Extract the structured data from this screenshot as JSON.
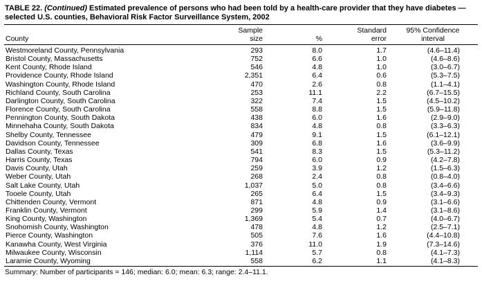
{
  "title": {
    "label": "TABLE 22.",
    "continued": "(Continued)",
    "text": "Estimated prevalence of persons who had been told by a health-care provider that they have diabetes — selected U.S. counties, Behavioral Risk Factor Surveillance System, 2002"
  },
  "table": {
    "header": {
      "county": "County",
      "sample_line1": "Sample",
      "sample_line2": "size",
      "percent": "%",
      "se_line1": "Standard",
      "se_line2": "error",
      "ci_line1": "95% Confidence",
      "ci_line2": "interval"
    },
    "rows": [
      {
        "county": "Westmoreland County, Pennsylvania",
        "sample_size": "293",
        "percent": "8.0",
        "standard_error": "1.7",
        "confidence_interval": "(4.6–11.4)"
      },
      {
        "county": "Bristol County, Massachusetts",
        "sample_size": "752",
        "percent": "6.6",
        "standard_error": "1.0",
        "confidence_interval": "(4.6–8.6)"
      },
      {
        "county": "Kent County, Rhode Island",
        "sample_size": "546",
        "percent": "4.8",
        "standard_error": "1.0",
        "confidence_interval": "(3.0–6.7)"
      },
      {
        "county": "Providence County, Rhode Island",
        "sample_size": "2,351",
        "percent": "6.4",
        "standard_error": "0.6",
        "confidence_interval": "(5.3–7.5)"
      },
      {
        "county": "Washington County, Rhode Island",
        "sample_size": "470",
        "percent": "2.6",
        "standard_error": "0.8",
        "confidence_interval": "(1.1–4.1)"
      },
      {
        "county": "Richland County, South Carolina",
        "sample_size": "253",
        "percent": "11.1",
        "standard_error": "2.2",
        "confidence_interval": "(6.7–15.5)"
      },
      {
        "county": "Darlington County, South Carolina",
        "sample_size": "322",
        "percent": "7.4",
        "standard_error": "1.5",
        "confidence_interval": "(4.5–10.2)"
      },
      {
        "county": "Florence County, South Carolina",
        "sample_size": "558",
        "percent": "8.8",
        "standard_error": "1.5",
        "confidence_interval": "(5.9–11.8)"
      },
      {
        "county": "Pennington County, South Dakota",
        "sample_size": "438",
        "percent": "6.0",
        "standard_error": "1.6",
        "confidence_interval": "(2.9–9.0)"
      },
      {
        "county": "Minnehaha County, South Dakota",
        "sample_size": "834",
        "percent": "4.8",
        "standard_error": "0.8",
        "confidence_interval": "(3.3–6.3)"
      },
      {
        "county": "Shelby County, Tennessee",
        "sample_size": "479",
        "percent": "9.1",
        "standard_error": "1.5",
        "confidence_interval": "(6.1–12.1)"
      },
      {
        "county": "Davidson County, Tennessee",
        "sample_size": "309",
        "percent": "6.8",
        "standard_error": "1.6",
        "confidence_interval": "(3.6–9.9)"
      },
      {
        "county": "Dallas County, Texas",
        "sample_size": "541",
        "percent": "8.3",
        "standard_error": "1.5",
        "confidence_interval": "(5.3–11.2)"
      },
      {
        "county": "Harris County, Texas",
        "sample_size": "794",
        "percent": "6.0",
        "standard_error": "0.9",
        "confidence_interval": "(4.2–7.8)"
      },
      {
        "county": "Davis County, Utah",
        "sample_size": "259",
        "percent": "3.9",
        "standard_error": "1.2",
        "confidence_interval": "(1.5–6.3)"
      },
      {
        "county": "Weber County, Utah",
        "sample_size": "268",
        "percent": "2.4",
        "standard_error": "0.8",
        "confidence_interval": "(0.8–4.0)"
      },
      {
        "county": "Salt Lake County, Utah",
        "sample_size": "1,037",
        "percent": "5.0",
        "standard_error": "0.8",
        "confidence_interval": "(3.4–6.6)"
      },
      {
        "county": "Tooele County, Utah",
        "sample_size": "265",
        "percent": "6.4",
        "standard_error": "1.5",
        "confidence_interval": "(3.4–9.3)"
      },
      {
        "county": "Chittenden County, Vermont",
        "sample_size": "871",
        "percent": "4.8",
        "standard_error": "0.9",
        "confidence_interval": "(3.1–6.6)"
      },
      {
        "county": "Franklin County, Vermont",
        "sample_size": "299",
        "percent": "5.9",
        "standard_error": "1.4",
        "confidence_interval": "(3.1–8.6)"
      },
      {
        "county": "King County, Washington",
        "sample_size": "1,369",
        "percent": "5.4",
        "standard_error": "0.7",
        "confidence_interval": "(4.0–6.7)"
      },
      {
        "county": "Snohomish County, Washington",
        "sample_size": "478",
        "percent": "4.8",
        "standard_error": "1.2",
        "confidence_interval": "(2.5–7.1)"
      },
      {
        "county": "Pierce County, Washington",
        "sample_size": "505",
        "percent": "7.6",
        "standard_error": "1.6",
        "confidence_interval": "(4.4–10.8)"
      },
      {
        "county": "Kanawha County, West Virginia",
        "sample_size": "376",
        "percent": "11.0",
        "standard_error": "1.9",
        "confidence_interval": "(7.3–14.6)"
      },
      {
        "county": "Milwaukee County, Wisconsin",
        "sample_size": "1,114",
        "percent": "5.7",
        "standard_error": "0.8",
        "confidence_interval": "(4.1–7.3)"
      },
      {
        "county": "Laramie County, Wyoming",
        "sample_size": "558",
        "percent": "6.2",
        "standard_error": "1.1",
        "confidence_interval": "(4.1–8.3)"
      }
    ]
  },
  "summary": "Summary: Number of participants = 146; median: 6.0; mean: 6.3; range: 2.4–11.1."
}
